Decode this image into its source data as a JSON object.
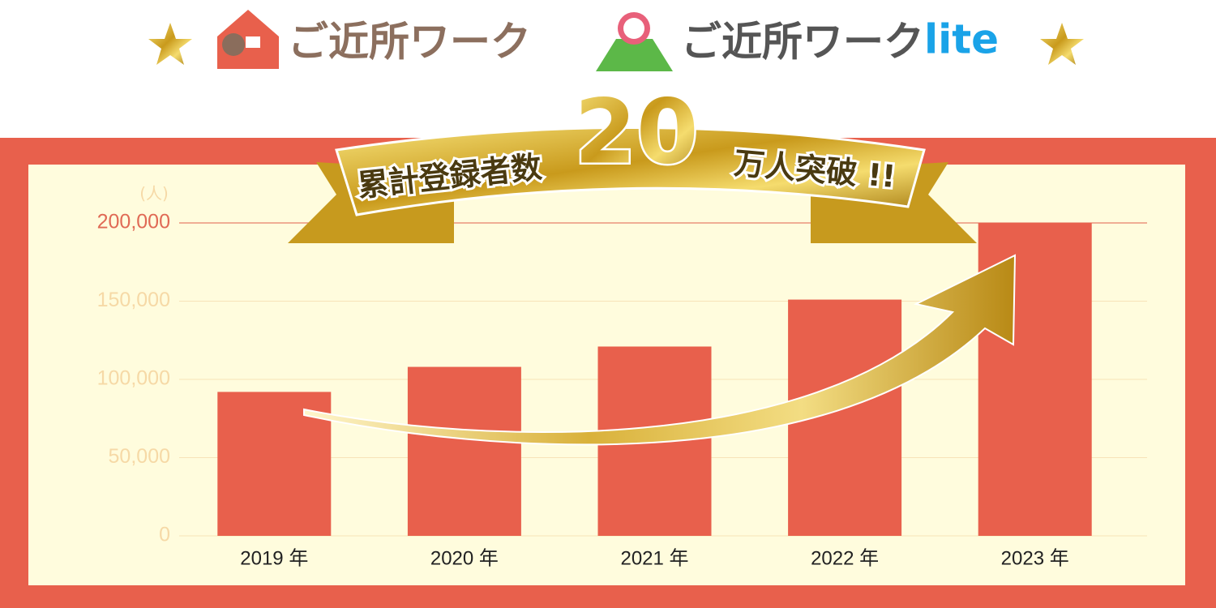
{
  "header": {
    "logo": "ご近所ワーク",
    "logo_lite": "ご近所ワーク",
    "logo_lite_suffix": "lite"
  },
  "banner": {
    "lead": "累計登録者数",
    "number": "20",
    "tail": "万人突破 !!"
  },
  "chart_data": {
    "type": "bar",
    "y_unit": "(人)",
    "categories": [
      "2019 年",
      "2020 年",
      "2021 年",
      "2022 年",
      "2023 年"
    ],
    "values": [
      92000,
      108000,
      121000,
      151000,
      200000
    ],
    "color": "#e8604c",
    "ylim": [
      0,
      200000
    ],
    "yticks": [
      {
        "value": 0,
        "label": "0"
      },
      {
        "value": 50000,
        "label": "50,000"
      },
      {
        "value": 100000,
        "label": "100,000"
      },
      {
        "value": 150000,
        "label": "150,000"
      },
      {
        "value": 200000,
        "label": "200,000"
      }
    ],
    "grid": true
  }
}
